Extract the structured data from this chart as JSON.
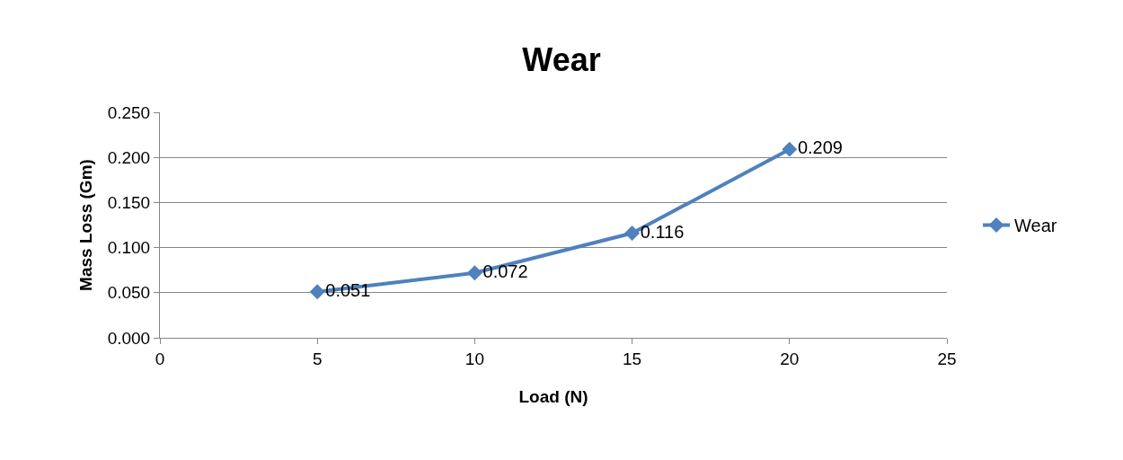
{
  "chart_data": {
    "type": "line",
    "title": "Wear",
    "xlabel": "Load (N)",
    "ylabel": "Mass Loss (Gm)",
    "x": [
      5,
      10,
      15,
      20
    ],
    "series": [
      {
        "name": "Wear",
        "color": "#4f81bd",
        "values": [
          0.051,
          0.072,
          0.116,
          0.209
        ]
      }
    ],
    "xlim": [
      0,
      25
    ],
    "xticks": [
      0,
      5,
      10,
      15,
      20,
      25
    ],
    "ylim": [
      0,
      0.25
    ],
    "yticks": [
      {
        "value": 0,
        "label": "0.000"
      },
      {
        "value": 0.05,
        "label": "0.050"
      },
      {
        "value": 0.1,
        "label": "0.100"
      },
      {
        "value": 0.15,
        "label": "0.150"
      },
      {
        "value": 0.2,
        "label": "0.200"
      },
      {
        "value": 0.25,
        "label": "0.250"
      }
    ],
    "grid": "y",
    "legend": "right",
    "marker": "diamond",
    "line_style": "solid",
    "data_labels": true
  }
}
